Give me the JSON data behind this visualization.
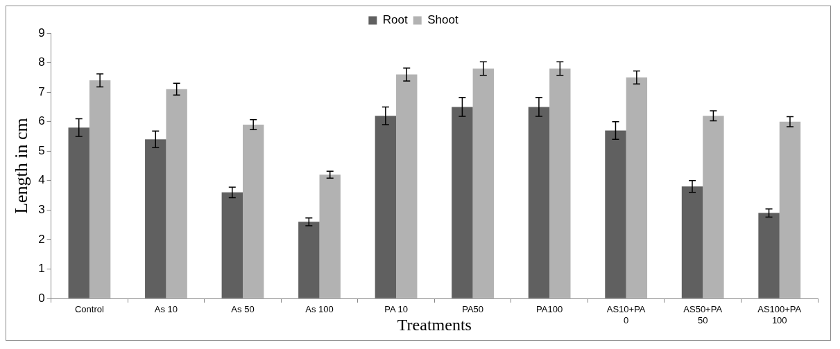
{
  "chart_data": {
    "type": "bar",
    "xlabel": "Treatments",
    "ylabel": "Length in cm",
    "categories": [
      "Control",
      "As 10",
      "As 50",
      "As 100",
      "PA 10",
      "PA50",
      "PA100",
      "AS10+PA 0",
      "AS50+PA 50",
      "AS100+PA 100"
    ],
    "series": [
      {
        "name": "Root",
        "color": "#606060",
        "values": [
          5.8,
          5.4,
          3.6,
          2.6,
          6.2,
          6.5,
          6.5,
          5.7,
          3.8,
          2.9
        ],
        "errors": [
          0.3,
          0.28,
          0.18,
          0.13,
          0.3,
          0.32,
          0.32,
          0.3,
          0.2,
          0.14
        ]
      },
      {
        "name": "Shoot",
        "color": "#b2b2b2",
        "values": [
          7.4,
          7.1,
          5.9,
          4.2,
          7.6,
          7.8,
          7.8,
          7.5,
          6.2,
          6.0
        ],
        "errors": [
          0.22,
          0.2,
          0.17,
          0.12,
          0.22,
          0.23,
          0.23,
          0.22,
          0.17,
          0.17
        ]
      }
    ],
    "ylim": [
      0,
      9
    ],
    "yticks": [
      0,
      1,
      2,
      3,
      4,
      5,
      6,
      7,
      8,
      9
    ],
    "grid": false,
    "legend": "top"
  }
}
